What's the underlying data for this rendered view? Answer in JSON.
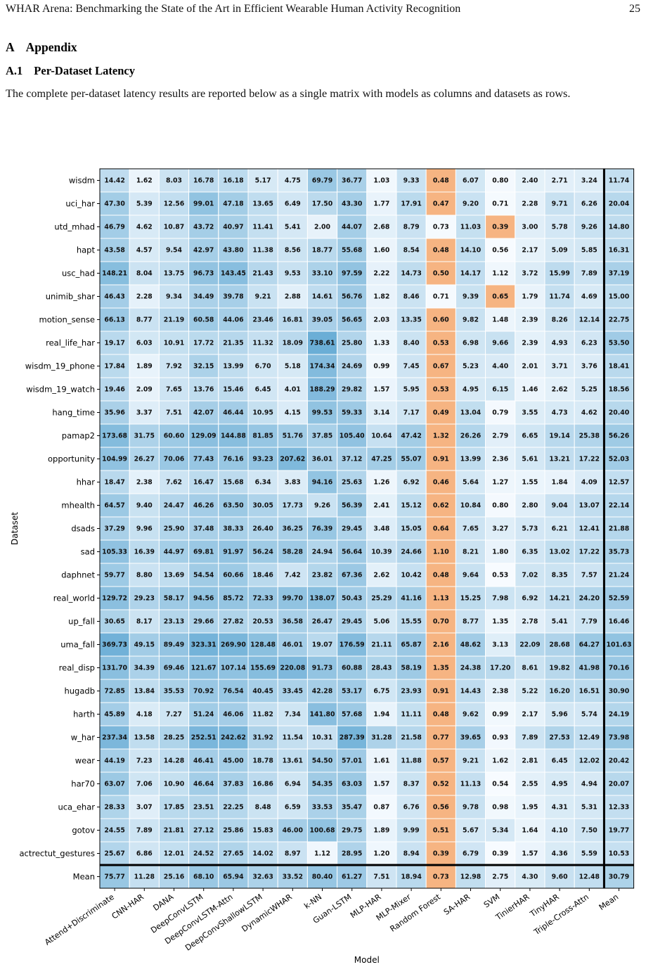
{
  "running_head": {
    "title": "WHAR Arena: Benchmarking the State of the Art in Efficient Wearable Human Activity Recognition",
    "page_number": "25"
  },
  "section": {
    "number": "A",
    "title": "Appendix"
  },
  "subsection": {
    "number": "A.1",
    "title": "Per-Dataset Latency"
  },
  "intro_text": "The complete per-dataset latency results are reported below as a single matrix with models as columns and datasets as rows.",
  "chart_data": {
    "type": "heatmap",
    "xlabel": "Model",
    "ylabel": "Dataset",
    "colors": {
      "low": "#f7fbff",
      "high": "#6baed6",
      "highlight": "#f6b482",
      "grid_line": "#ffffff",
      "separator": "#000000"
    },
    "highlight_rule": "row minimum",
    "x_categories": [
      "Attend+Discriminate",
      "CNN-HAR",
      "DANA",
      "DeepConvLSTM",
      "DeepConvLSTM-Attn",
      "DeepConvShallowLSTM",
      "DynamicWHAR",
      "k-NN",
      "Guan-LSTM",
      "MLP-HAR",
      "MLP-Mixer",
      "Random Forest",
      "SA-HAR",
      "SVM",
      "TinierHAR",
      "TinyHAR",
      "Triple-Cross-Attn",
      "Mean"
    ],
    "y_categories": [
      "wisdm",
      "uci_har",
      "utd_mhad",
      "hapt",
      "usc_had",
      "unimib_shar",
      "motion_sense",
      "real_life_har",
      "wisdm_19_phone",
      "wisdm_19_watch",
      "hang_time",
      "pamap2",
      "opportunity",
      "hhar",
      "mhealth",
      "dsads",
      "sad",
      "daphnet",
      "real_world",
      "up_fall",
      "uma_fall",
      "real_disp",
      "hugadb",
      "harth",
      "w_har",
      "wear",
      "har70",
      "uca_ehar",
      "gotov",
      "actrectut_gestures",
      "Mean"
    ],
    "values": [
      [
        "14.42",
        "1.62",
        "8.03",
        "16.78",
        "16.18",
        "5.17",
        "4.75",
        "69.79",
        "36.77",
        "1.03",
        "9.33",
        "0.48",
        "6.07",
        "0.80",
        "2.40",
        "2.71",
        "3.24",
        "11.74"
      ],
      [
        "47.30",
        "5.39",
        "12.56",
        "99.01",
        "47.18",
        "13.65",
        "6.49",
        "17.50",
        "43.30",
        "1.77",
        "17.91",
        "0.47",
        "9.20",
        "0.71",
        "2.28",
        "9.71",
        "6.26",
        "20.04"
      ],
      [
        "46.79",
        "4.62",
        "10.87",
        "43.72",
        "40.97",
        "11.41",
        "5.41",
        "2.00",
        "44.07",
        "2.68",
        "8.79",
        "0.73",
        "11.03",
        "0.39",
        "3.00",
        "5.78",
        "9.26",
        "14.80"
      ],
      [
        "43.58",
        "4.57",
        "9.54",
        "42.97",
        "43.80",
        "11.38",
        "8.56",
        "18.77",
        "55.68",
        "1.60",
        "8.54",
        "0.48",
        "14.10",
        "0.56",
        "2.17",
        "5.09",
        "5.85",
        "16.31"
      ],
      [
        "148.21",
        "8.04",
        "13.75",
        "96.73",
        "143.45",
        "21.43",
        "9.53",
        "33.10",
        "97.59",
        "2.22",
        "14.73",
        "0.50",
        "14.17",
        "1.12",
        "3.72",
        "15.99",
        "7.89",
        "37.19"
      ],
      [
        "46.43",
        "2.28",
        "9.34",
        "34.49",
        "39.78",
        "9.21",
        "2.88",
        "14.61",
        "56.76",
        "1.82",
        "8.46",
        "0.71",
        "9.39",
        "0.65",
        "1.79",
        "11.74",
        "4.69",
        "15.00"
      ],
      [
        "66.13",
        "8.77",
        "21.19",
        "60.58",
        "44.06",
        "23.46",
        "16.81",
        "39.05",
        "56.65",
        "2.03",
        "13.35",
        "0.60",
        "9.82",
        "1.48",
        "2.39",
        "8.26",
        "12.14",
        "22.75"
      ],
      [
        "19.17",
        "6.03",
        "10.91",
        "17.72",
        "21.35",
        "11.32",
        "18.09",
        "738.61",
        "25.80",
        "1.33",
        "8.40",
        "0.53",
        "6.98",
        "9.66",
        "2.39",
        "4.93",
        "6.23",
        "53.50"
      ],
      [
        "17.84",
        "1.89",
        "7.92",
        "32.15",
        "13.99",
        "6.70",
        "5.18",
        "174.34",
        "24.69",
        "0.99",
        "7.45",
        "0.67",
        "5.23",
        "4.40",
        "2.01",
        "3.71",
        "3.76",
        "18.41"
      ],
      [
        "19.46",
        "2.09",
        "7.65",
        "13.76",
        "15.46",
        "6.45",
        "4.01",
        "188.29",
        "29.82",
        "1.57",
        "5.95",
        "0.53",
        "4.95",
        "6.15",
        "1.46",
        "2.62",
        "5.25",
        "18.56"
      ],
      [
        "35.96",
        "3.37",
        "7.51",
        "42.07",
        "46.44",
        "10.95",
        "4.15",
        "99.53",
        "59.33",
        "3.14",
        "7.17",
        "0.49",
        "13.04",
        "0.79",
        "3.55",
        "4.73",
        "4.62",
        "20.40"
      ],
      [
        "173.68",
        "31.75",
        "60.60",
        "129.09",
        "144.88",
        "81.85",
        "51.76",
        "37.85",
        "105.40",
        "10.64",
        "47.42",
        "1.32",
        "26.26",
        "2.79",
        "6.65",
        "19.14",
        "25.38",
        "56.26"
      ],
      [
        "104.99",
        "26.27",
        "70.06",
        "77.43",
        "76.16",
        "93.23",
        "207.62",
        "36.01",
        "37.12",
        "47.25",
        "55.07",
        "0.91",
        "13.99",
        "2.36",
        "5.61",
        "13.21",
        "17.22",
        "52.03"
      ],
      [
        "18.47",
        "2.38",
        "7.62",
        "16.47",
        "15.68",
        "6.34",
        "3.83",
        "94.16",
        "25.63",
        "1.26",
        "6.92",
        "0.46",
        "5.64",
        "1.27",
        "1.55",
        "1.84",
        "4.09",
        "12.57"
      ],
      [
        "64.57",
        "9.40",
        "24.47",
        "46.26",
        "63.50",
        "30.05",
        "17.73",
        "9.26",
        "56.39",
        "2.41",
        "15.12",
        "0.62",
        "10.84",
        "0.80",
        "2.80",
        "9.04",
        "13.07",
        "22.14"
      ],
      [
        "37.29",
        "9.96",
        "25.90",
        "37.48",
        "38.33",
        "26.40",
        "36.25",
        "76.39",
        "29.45",
        "3.48",
        "15.05",
        "0.64",
        "7.65",
        "3.27",
        "5.73",
        "6.21",
        "12.41",
        "21.88"
      ],
      [
        "105.33",
        "16.39",
        "44.97",
        "69.81",
        "91.97",
        "56.24",
        "58.28",
        "24.94",
        "56.64",
        "10.39",
        "24.66",
        "1.10",
        "8.21",
        "1.80",
        "6.35",
        "13.02",
        "17.22",
        "35.73"
      ],
      [
        "59.77",
        "8.80",
        "13.69",
        "54.54",
        "60.66",
        "18.46",
        "7.42",
        "23.82",
        "67.36",
        "2.62",
        "10.42",
        "0.48",
        "9.64",
        "0.53",
        "7.02",
        "8.35",
        "7.57",
        "21.24"
      ],
      [
        "129.72",
        "29.23",
        "58.17",
        "94.56",
        "85.72",
        "72.33",
        "99.70",
        "138.07",
        "50.43",
        "25.29",
        "41.16",
        "1.13",
        "15.25",
        "7.98",
        "6.92",
        "14.21",
        "24.20",
        "52.59"
      ],
      [
        "30.65",
        "8.17",
        "23.13",
        "29.66",
        "27.82",
        "20.53",
        "36.58",
        "26.47",
        "29.45",
        "5.06",
        "15.55",
        "0.70",
        "8.77",
        "1.35",
        "2.78",
        "5.41",
        "7.79",
        "16.46"
      ],
      [
        "369.73",
        "49.15",
        "89.49",
        "323.31",
        "269.90",
        "128.48",
        "46.01",
        "19.07",
        "176.59",
        "21.11",
        "65.87",
        "2.16",
        "48.62",
        "3.13",
        "22.09",
        "28.68",
        "64.27",
        "101.63"
      ],
      [
        "131.70",
        "34.39",
        "69.46",
        "121.67",
        "107.14",
        "155.69",
        "220.08",
        "91.73",
        "60.88",
        "28.43",
        "58.19",
        "1.35",
        "24.38",
        "17.20",
        "8.61",
        "19.82",
        "41.98",
        "70.16"
      ],
      [
        "72.85",
        "13.84",
        "35.53",
        "70.92",
        "76.54",
        "40.45",
        "33.45",
        "42.28",
        "53.17",
        "6.75",
        "23.93",
        "0.91",
        "14.43",
        "2.38",
        "5.22",
        "16.20",
        "16.51",
        "30.90"
      ],
      [
        "45.89",
        "4.18",
        "7.27",
        "51.24",
        "46.06",
        "11.82",
        "7.34",
        "141.80",
        "57.68",
        "1.94",
        "11.11",
        "0.48",
        "9.62",
        "0.99",
        "2.17",
        "5.96",
        "5.74",
        "24.19"
      ],
      [
        "237.34",
        "13.58",
        "28.25",
        "252.51",
        "242.62",
        "31.92",
        "11.54",
        "10.31",
        "287.39",
        "31.28",
        "21.58",
        "0.77",
        "39.65",
        "0.93",
        "7.89",
        "27.53",
        "12.49",
        "73.98"
      ],
      [
        "44.19",
        "7.23",
        "14.28",
        "46.41",
        "45.00",
        "18.78",
        "13.61",
        "54.50",
        "57.01",
        "1.61",
        "11.88",
        "0.57",
        "9.21",
        "1.62",
        "2.81",
        "6.45",
        "12.02",
        "20.42"
      ],
      [
        "63.07",
        "7.06",
        "10.90",
        "46.64",
        "37.83",
        "16.86",
        "6.94",
        "54.35",
        "63.03",
        "1.57",
        "8.37",
        "0.52",
        "11.13",
        "0.54",
        "2.55",
        "4.95",
        "4.94",
        "20.07"
      ],
      [
        "28.33",
        "3.07",
        "17.85",
        "23.51",
        "22.25",
        "8.48",
        "6.59",
        "33.53",
        "35.47",
        "0.87",
        "6.76",
        "0.56",
        "9.78",
        "0.98",
        "1.95",
        "4.31",
        "5.31",
        "12.33"
      ],
      [
        "24.55",
        "7.89",
        "21.81",
        "27.12",
        "25.86",
        "15.83",
        "46.00",
        "100.68",
        "29.75",
        "1.89",
        "9.99",
        "0.51",
        "5.67",
        "5.34",
        "1.64",
        "4.10",
        "7.50",
        "19.77"
      ],
      [
        "25.67",
        "6.86",
        "12.01",
        "24.52",
        "27.65",
        "14.02",
        "8.97",
        "1.12",
        "28.95",
        "1.20",
        "8.94",
        "0.39",
        "6.79",
        "0.39",
        "1.57",
        "4.36",
        "5.59",
        "10.53"
      ],
      [
        "75.77",
        "11.28",
        "25.16",
        "68.10",
        "65.94",
        "32.63",
        "33.52",
        "80.40",
        "61.27",
        "7.51",
        "18.94",
        "0.73",
        "12.98",
        "2.75",
        "4.30",
        "9.60",
        "12.48",
        "30.79"
      ]
    ]
  }
}
